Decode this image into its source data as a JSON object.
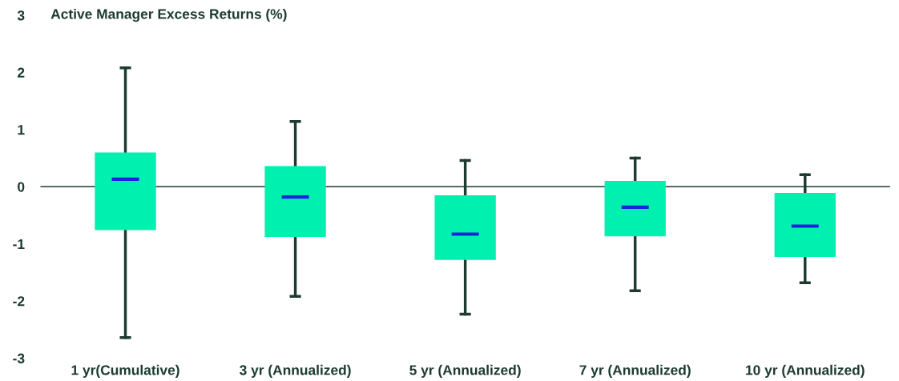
{
  "chart_data": {
    "type": "box",
    "title": "Active Manager Excess Returns (%)",
    "categories": [
      "1 yr(Cumulative)",
      "3 yr (Annualized)",
      "5 yr (Annualized)",
      "7 yr (Annualized)",
      "10 yr (Annualized)"
    ],
    "boxes": [
      {
        "low": -2.64,
        "q1": -0.76,
        "median": 0.13,
        "q3": 0.6,
        "high": 2.08
      },
      {
        "low": -1.92,
        "q1": -0.88,
        "median": -0.18,
        "q3": 0.36,
        "high": 1.14
      },
      {
        "low": -2.23,
        "q1": -1.28,
        "median": -0.83,
        "q3": -0.15,
        "high": 0.46
      },
      {
        "low": -1.82,
        "q1": -0.87,
        "median": -0.36,
        "q3": 0.1,
        "high": 0.5
      },
      {
        "low": -1.68,
        "q1": -1.23,
        "median": -0.69,
        "q3": -0.11,
        "high": 0.21
      }
    ],
    "color": "#00f0b0",
    "ylim": [
      -3,
      3
    ],
    "yticks": [
      -3,
      -2,
      -1,
      0,
      1,
      2,
      3
    ],
    "ref_lines": [
      {
        "axis": "y",
        "value": 0,
        "color": "#1d3b2f"
      }
    ],
    "grid": false,
    "legend": false
  }
}
